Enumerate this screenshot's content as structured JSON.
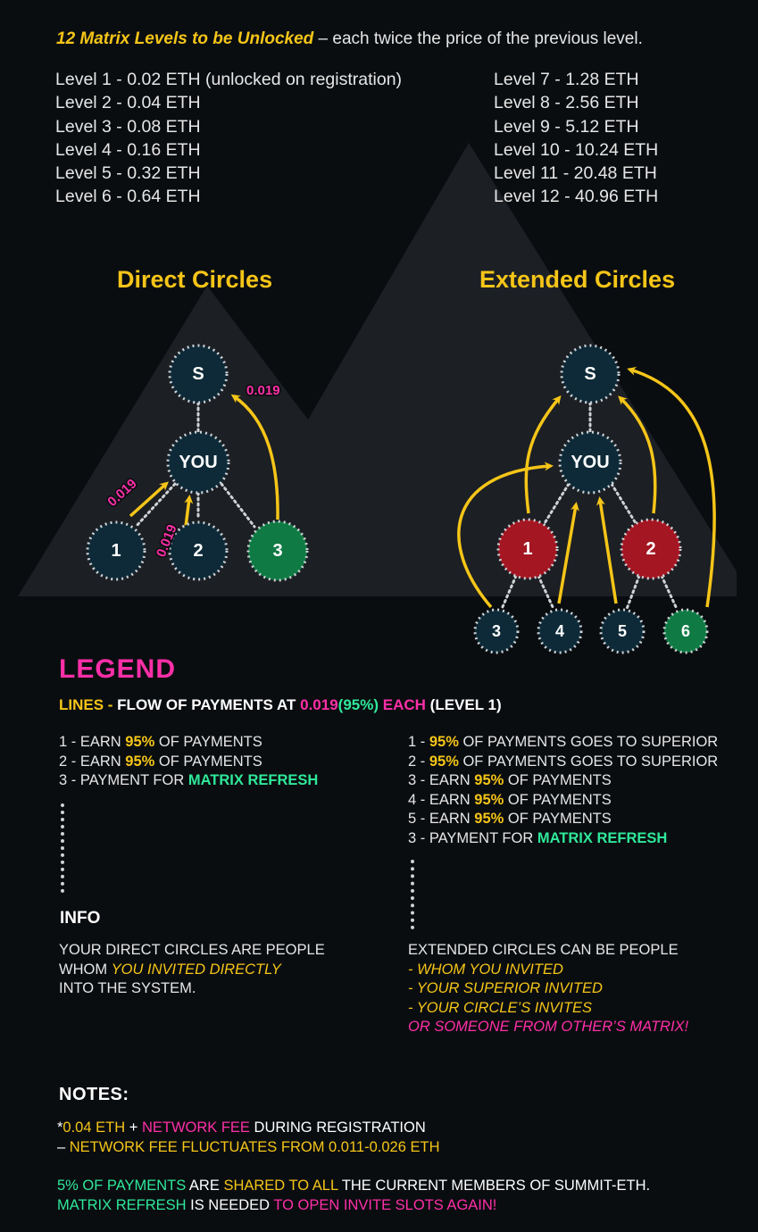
{
  "intro": {
    "highlight": "12 Matrix Levels to be Unlocked",
    "rest": " – each twice the price of the previous level."
  },
  "levels_left": [
    "Level 1 - 0.02 ETH (unlocked on registration)",
    "Level 2 - 0.04 ETH",
    "Level 3 - 0.08 ETH",
    "Level 4 - 0.16 ETH",
    "Level 5 - 0.32 ETH",
    "Level 6 - 0.64 ETH"
  ],
  "levels_right": [
    "Level 7 - 1.28 ETH",
    "Level 8 - 2.56 ETH",
    "Level 9 - 5.12 ETH",
    "Level 10 - 10.24 ETH",
    "Level 11 - 20.48 ETH",
    "Level 12 - 40.96 ETH"
  ],
  "direct": {
    "title": "Direct Circles",
    "nodes": {
      "s": "S",
      "you": "YOU",
      "n1": "1",
      "n2": "2",
      "n3": "3"
    },
    "amounts": [
      "0.019",
      "0.019",
      "0.019"
    ]
  },
  "extended": {
    "title": "Extended Circles",
    "nodes": {
      "s": "S",
      "you": "YOU",
      "n1": "1",
      "n2": "2",
      "n3": "3",
      "n4": "4",
      "n5": "5",
      "n6": "6"
    }
  },
  "colors": {
    "yellow": "#f5c518",
    "pink": "#ff2fa8",
    "green": "#2ee89a",
    "node_dark": "#0e2a38",
    "node_red": "#a31622",
    "node_green": "#0f7a44",
    "background": "#0a0d10"
  },
  "legend": {
    "title": "LEGEND",
    "lines_label": "LINES",
    "lines_sep": " - ",
    "lines_text": "FLOW OF PAYMENTS AT ",
    "lines_amount": "0.019",
    "lines_percent": "(95%)",
    "lines_each": " EACH",
    "lines_level": " (LEVEL 1)"
  },
  "direct_list": {
    "item1": {
      "prefix": "1 - EARN ",
      "pct": "95%",
      "suffix": " OF PAYMENTS"
    },
    "item2": {
      "prefix": "2 - EARN ",
      "pct": "95%",
      "suffix": " OF PAYMENTS"
    },
    "item3": {
      "prefix": "3 - PAYMENT FOR ",
      "hl": "MATRIX REFRESH"
    }
  },
  "extended_list": {
    "item1": {
      "prefix": "1 - ",
      "pct": "95%",
      "suffix": " OF PAYMENTS GOES TO SUPERIOR"
    },
    "item2": {
      "prefix": "2 - ",
      "pct": "95%",
      "suffix": " OF PAYMENTS GOES TO SUPERIOR"
    },
    "item3": {
      "prefix": "3 - EARN ",
      "pct": "95%",
      "suffix": " OF PAYMENTS"
    },
    "item4": {
      "prefix": "4 - EARN ",
      "pct": "95%",
      "suffix": " OF PAYMENTS"
    },
    "item5": {
      "prefix": "5 - EARN ",
      "pct": "95%",
      "suffix": " OF PAYMENTS"
    },
    "item6": {
      "prefix": "3 - PAYMENT FOR ",
      "hl": "MATRIX REFRESH"
    }
  },
  "info": {
    "title": "INFO",
    "left": {
      "line1": "YOUR DIRECT CIRCLES ARE PEOPLE",
      "line2_prefix": "WHOM ",
      "line2_hl": "YOU INVITED DIRECTLY",
      "line3": "INTO THE SYSTEM."
    },
    "right": {
      "line1": "EXTENDED CIRCLES CAN BE PEOPLE",
      "line2": "- WHOM YOU INVITED",
      "line3": "- YOUR SUPERIOR INVITED",
      "line4": "- YOUR CIRCLE’S INVITES",
      "line5": "OR SOMEONE FROM OTHER’S MATRIX!"
    }
  },
  "notes": {
    "title": "NOTES:",
    "line1_star": "*",
    "line1_amount": "0.04 ETH",
    "line1_plus": " + ",
    "line1_fee": "NETWORK FEE",
    "line1_rest": " DURING REGISTRATION",
    "line2_dash": "– ",
    "line2_text": "NETWORK FEE FLUCTUATES FROM 0.011-0.026 ETH",
    "line3_a": "5% OF PAYMENTS",
    "line3_b": " ARE ",
    "line3_c": "SHARED TO ALL",
    "line3_d": " THE CURRENT MEMBERS OF SUMMIT-ETH.",
    "line4_a": "MATRIX REFRESH",
    "line4_b": " IS NEEDED ",
    "line4_c": "TO OPEN INVITE SLOTS AGAIN!"
  }
}
